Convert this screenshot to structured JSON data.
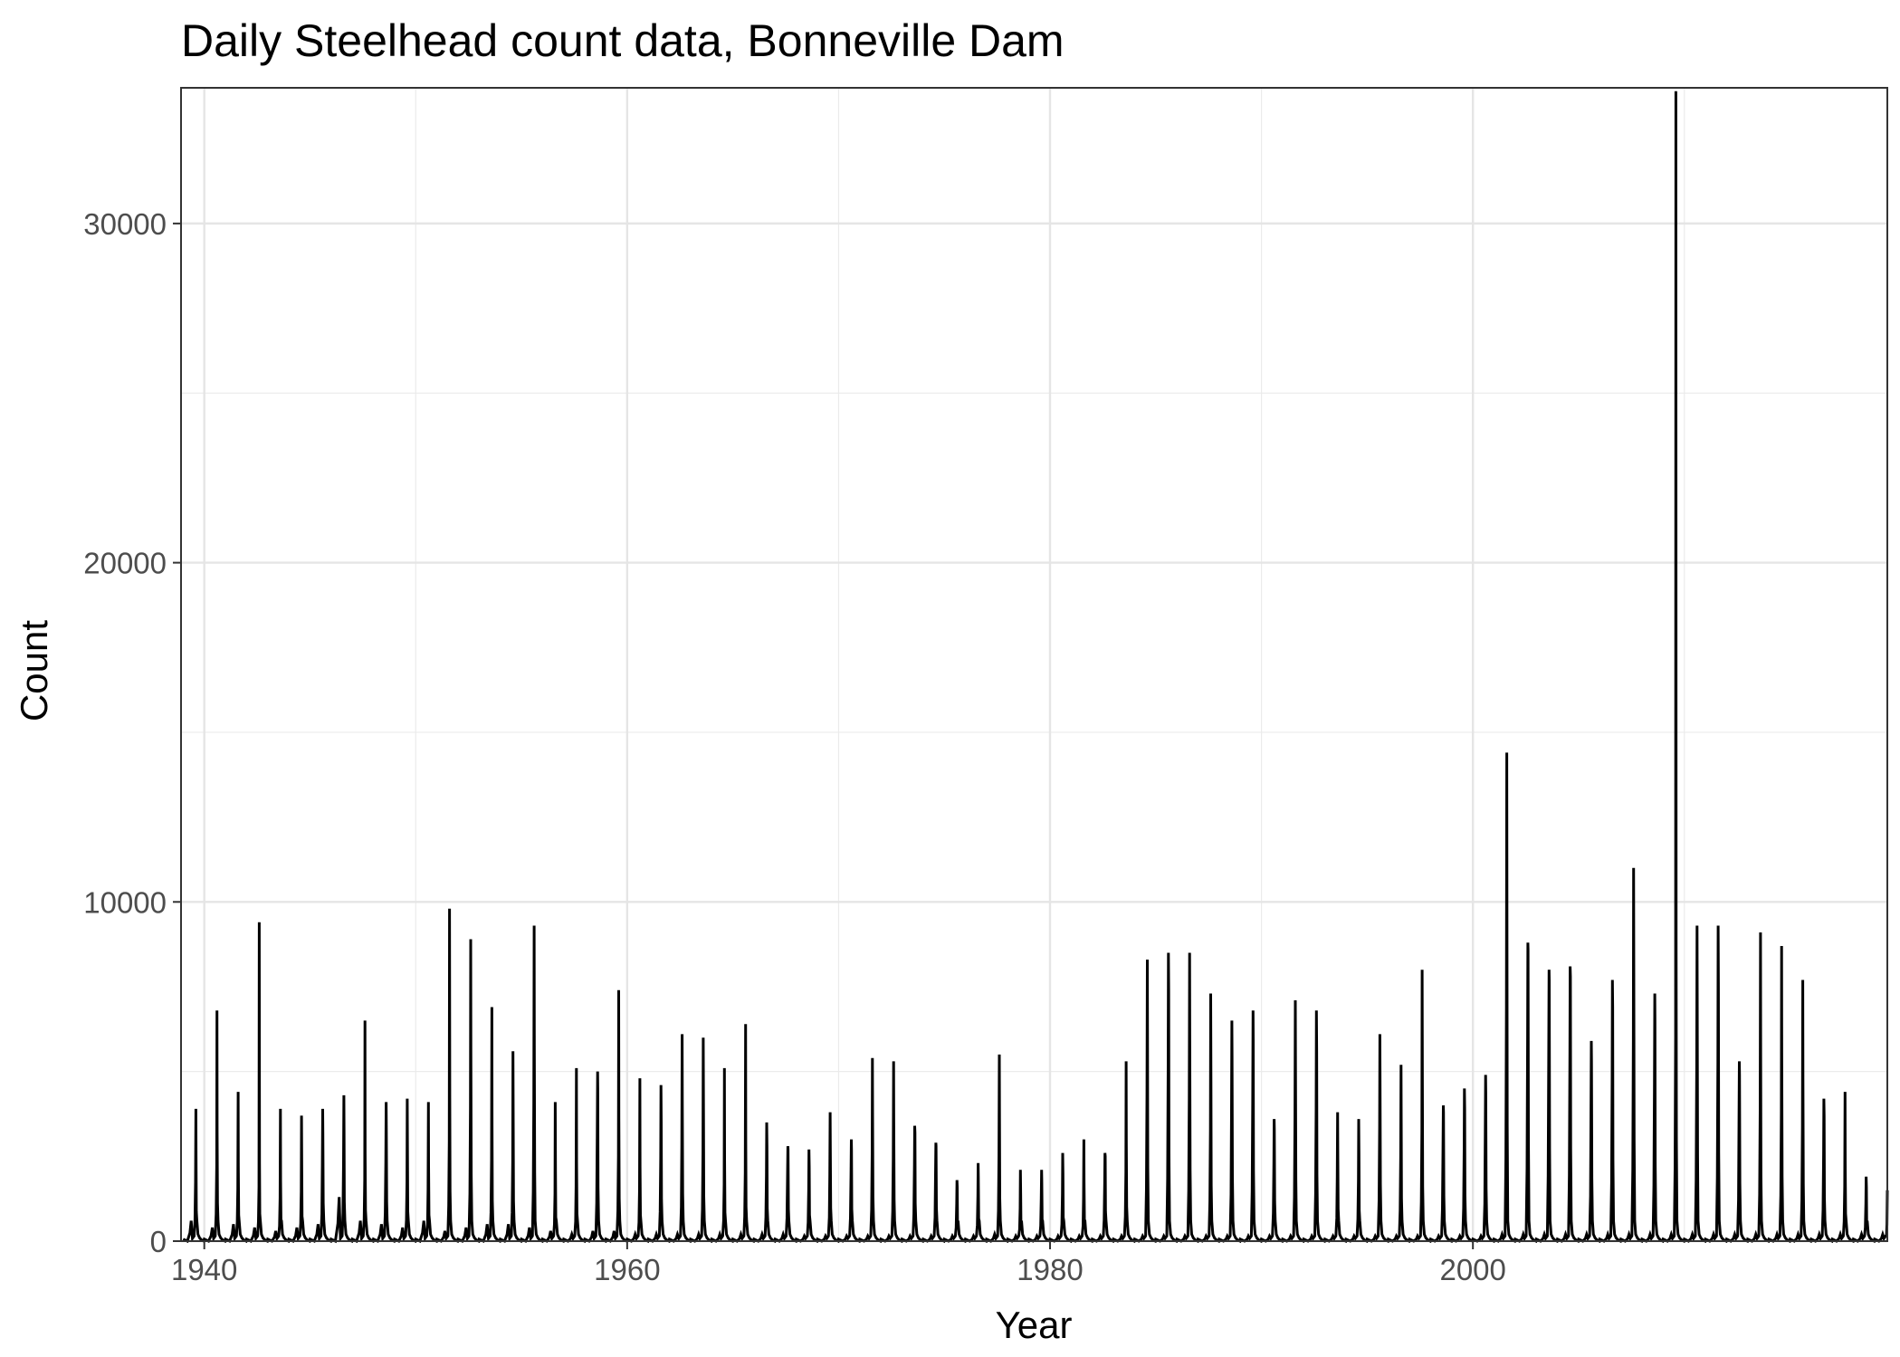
{
  "chart_data": {
    "type": "line",
    "title": "Daily Steelhead count data, Bonneville Dam",
    "xlabel": "Year",
    "ylabel": "Count",
    "xlim": [
      1938.9,
      2019.6
    ],
    "ylim": [
      0,
      34000
    ],
    "x_ticks": [
      1940,
      1960,
      1980,
      2000
    ],
    "x_tick_labels": [
      "1940",
      "1960",
      "1980",
      "2000"
    ],
    "y_ticks": [
      0,
      10000,
      20000,
      30000
    ],
    "y_tick_labels": [
      "0",
      "10000",
      "20000",
      "30000"
    ],
    "grid": true,
    "legend": "none",
    "line_color": "#000000",
    "annual_peaks": {
      "year": [
        1939,
        1940,
        1941,
        1942,
        1943,
        1944,
        1945,
        1946,
        1947,
        1948,
        1949,
        1950,
        1951,
        1952,
        1953,
        1954,
        1955,
        1956,
        1957,
        1958,
        1959,
        1960,
        1961,
        1962,
        1963,
        1964,
        1965,
        1966,
        1967,
        1968,
        1969,
        1970,
        1971,
        1972,
        1973,
        1974,
        1975,
        1976,
        1977,
        1978,
        1979,
        1980,
        1981,
        1982,
        1983,
        1984,
        1985,
        1986,
        1987,
        1988,
        1989,
        1990,
        1991,
        1992,
        1993,
        1994,
        1995,
        1996,
        1997,
        1998,
        1999,
        2000,
        2001,
        2002,
        2003,
        2004,
        2005,
        2006,
        2007,
        2008,
        2009,
        2010,
        2011,
        2012,
        2013,
        2014,
        2015,
        2016,
        2017,
        2018,
        2019
      ],
      "peak_count": [
        3900,
        6800,
        4400,
        9400,
        3900,
        3700,
        3900,
        4300,
        6500,
        4100,
        4200,
        4100,
        9800,
        8900,
        6900,
        5600,
        9300,
        4100,
        5100,
        5000,
        7400,
        4800,
        4600,
        6100,
        6000,
        5100,
        6400,
        3500,
        2800,
        2700,
        3800,
        3000,
        5400,
        5300,
        3400,
        2900,
        1800,
        2300,
        5500,
        2100,
        2100,
        2600,
        3000,
        2600,
        5300,
        8300,
        8500,
        8500,
        7300,
        6500,
        6800,
        3600,
        7100,
        6800,
        3800,
        3600,
        6100,
        5200,
        8000,
        4000,
        4500,
        4900,
        14400,
        8800,
        8000,
        8100,
        5900,
        7700,
        11000,
        7300,
        33900,
        9300,
        9300,
        5300,
        9100,
        8700,
        7700,
        4200,
        4400,
        1900,
        1500
      ],
      "secondary_peak": [
        2500,
        3200,
        2200,
        2300,
        1800,
        2100,
        3200,
        3300,
        2600,
        3300,
        2500,
        2200,
        4200,
        5600,
        3400,
        3400,
        5800,
        2000,
        2300,
        4500,
        3600,
        2200,
        3500,
        4000,
        3800,
        2400,
        2900,
        2800,
        2700,
        2200,
        2800,
        2700,
        3700,
        3500,
        3200,
        2800,
        1600,
        1900,
        3600,
        1400,
        1800,
        2000,
        1800,
        2500,
        2900,
        6200,
        7400,
        6000,
        4700,
        5500,
        5900,
        3300,
        5200,
        5600,
        2700,
        2600,
        4800,
        3600,
        4600,
        3800,
        3900,
        4400,
        9800,
        8600,
        7700,
        7800,
        5300,
        6900,
        8500,
        6500,
        8600,
        7300,
        7500,
        4900,
        5500,
        5400,
        4800,
        3700,
        2300,
        1600,
        700
      ],
      "early_bump": [
        600,
        400,
        500,
        400,
        300,
        400,
        500,
        1300,
        600,
        500,
        400,
        600,
        300,
        400,
        500,
        500,
        400,
        300,
        200,
        300,
        300,
        200,
        200,
        200,
        200,
        200,
        200,
        200,
        200,
        150,
        150,
        150,
        150,
        150,
        150,
        150,
        150,
        150,
        200,
        150,
        150,
        150,
        150,
        150,
        150,
        150,
        150,
        150,
        150,
        150,
        150,
        150,
        150,
        150,
        150,
        150,
        150,
        150,
        150,
        150,
        150,
        150,
        200,
        200,
        200,
        200,
        200,
        200,
        200,
        200,
        200,
        200,
        200,
        200,
        200,
        200,
        200,
        200,
        200,
        200,
        200
      ]
    }
  }
}
